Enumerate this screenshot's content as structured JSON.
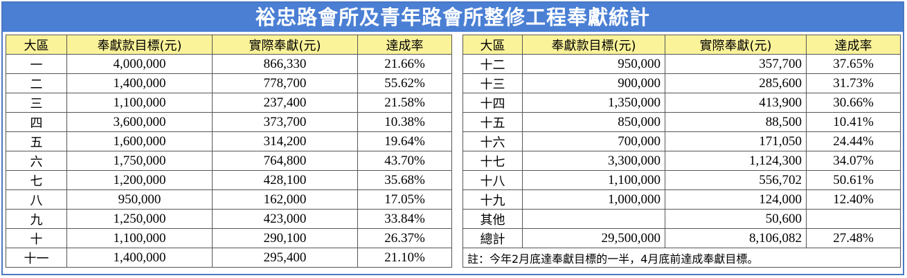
{
  "title": "裕忠路會所及青年路會所整修工程奉獻統計",
  "headers": [
    "大區",
    "奉獻款目標(元)",
    "實際奉獻(元)",
    "達成率"
  ],
  "left_rows": [
    {
      "region": "一",
      "target": "4,000,000",
      "actual": "866,330",
      "rate": "21.66%"
    },
    {
      "region": "二",
      "target": "1,400,000",
      "actual": "778,700",
      "rate": "55.62%"
    },
    {
      "region": "三",
      "target": "1,100,000",
      "actual": "237,400",
      "rate": "21.58%"
    },
    {
      "region": "四",
      "target": "3,600,000",
      "actual": "373,700",
      "rate": "10.38%"
    },
    {
      "region": "五",
      "target": "1,600,000",
      "actual": "314,200",
      "rate": "19.64%"
    },
    {
      "region": "六",
      "target": "1,750,000",
      "actual": "764,800",
      "rate": "43.70%"
    },
    {
      "region": "七",
      "target": "1,200,000",
      "actual": "428,100",
      "rate": "35.68%"
    },
    {
      "region": "八",
      "target": "950,000",
      "actual": "162,000",
      "rate": "17.05%"
    },
    {
      "region": "九",
      "target": "1,250,000",
      "actual": "423,000",
      "rate": "33.84%"
    },
    {
      "region": "十",
      "target": "1,100,000",
      "actual": "290,100",
      "rate": "26.37%"
    },
    {
      "region": "十一",
      "target": "1,400,000",
      "actual": "295,400",
      "rate": "21.10%"
    }
  ],
  "right_rows": [
    {
      "region": "十二",
      "target": "950,000",
      "actual": "357,700",
      "rate": "37.65%"
    },
    {
      "region": "十三",
      "target": "900,000",
      "actual": "285,600",
      "rate": "31.73%"
    },
    {
      "region": "十四",
      "target": "1,350,000",
      "actual": "413,900",
      "rate": "30.66%"
    },
    {
      "region": "十五",
      "target": "850,000",
      "actual": "88,500",
      "rate": "10.41%"
    },
    {
      "region": "十六",
      "target": "700,000",
      "actual": "171,050",
      "rate": "24.44%"
    },
    {
      "region": "十七",
      "target": "3,300,000",
      "actual": "1,124,300",
      "rate": "34.07%"
    },
    {
      "region": "十八",
      "target": "1,100,000",
      "actual": "556,702",
      "rate": "50.61%"
    },
    {
      "region": "十九",
      "target": "1,000,000",
      "actual": "124,000",
      "rate": "12.40%"
    },
    {
      "region": "其他",
      "target": "",
      "actual": "50,600",
      "rate": ""
    },
    {
      "region": "總計",
      "target": "29,500,000",
      "actual": "8,106,082",
      "rate": "27.48%"
    }
  ],
  "note": "註：今年2月底達奉獻目標的一半，4月底前達成奉獻目標。"
}
